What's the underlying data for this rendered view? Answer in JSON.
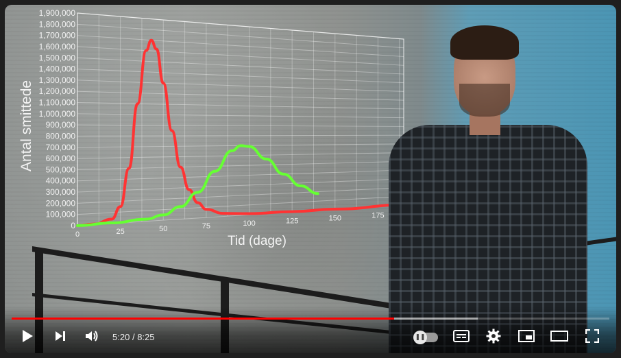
{
  "player": {
    "current_time": "5:20",
    "separator": "/",
    "duration": "8:25",
    "progress_played": 0.64,
    "progress_buffered": 0.78
  },
  "controls": {
    "play_icon": "play-icon",
    "next_icon": "next-icon",
    "volume_icon": "volume-icon",
    "autoplay_icon": "autoplay-toggle-icon",
    "subtitles_icon": "subtitles-icon",
    "settings_icon": "gear-icon",
    "miniplayer_icon": "miniplayer-icon",
    "theater_icon": "theater-mode-icon",
    "fullscreen_icon": "fullscreen-icon"
  },
  "chart_data": {
    "type": "line",
    "xlabel": "Tid (dage)",
    "ylabel": "Antal smittede",
    "xlim": [
      0,
      190
    ],
    "ylim": [
      0,
      1900000
    ],
    "x_ticks": [
      "0",
      "25",
      "50",
      "75",
      "100",
      "125",
      "150",
      "175"
    ],
    "y_ticks": [
      "0",
      "100,000",
      "200,000",
      "300,000",
      "400,000",
      "500,000",
      "600,000",
      "700,000",
      "800,000",
      "900,000",
      "1,000,000",
      "1,100,000",
      "1,200,000",
      "1,300,000",
      "1,400,000",
      "1,500,000",
      "1,600,000",
      "1,700,000",
      "1,800,000",
      "1,900,000"
    ],
    "grid": true,
    "series": [
      {
        "color": "#ff3333",
        "points": [
          [
            0,
            0
          ],
          [
            10,
            5000
          ],
          [
            20,
            40000
          ],
          [
            25,
            150000
          ],
          [
            30,
            500000
          ],
          [
            35,
            1100000
          ],
          [
            40,
            1600000
          ],
          [
            43,
            1700000
          ],
          [
            46,
            1620000
          ],
          [
            50,
            1300000
          ],
          [
            55,
            850000
          ],
          [
            60,
            500000
          ],
          [
            65,
            280000
          ],
          [
            70,
            150000
          ],
          [
            75,
            80000
          ],
          [
            85,
            30000
          ],
          [
            100,
            12000
          ],
          [
            125,
            5000
          ],
          [
            150,
            3000
          ],
          [
            190,
            2000
          ]
        ]
      },
      {
        "color": "#66ff33",
        "points": [
          [
            0,
            0
          ],
          [
            20,
            5000
          ],
          [
            40,
            20000
          ],
          [
            50,
            50000
          ],
          [
            60,
            120000
          ],
          [
            70,
            250000
          ],
          [
            80,
            450000
          ],
          [
            90,
            650000
          ],
          [
            95,
            700000
          ],
          [
            100,
            690000
          ],
          [
            110,
            560000
          ],
          [
            120,
            400000
          ],
          [
            130,
            270000
          ],
          [
            140,
            180000
          ]
        ]
      }
    ]
  }
}
